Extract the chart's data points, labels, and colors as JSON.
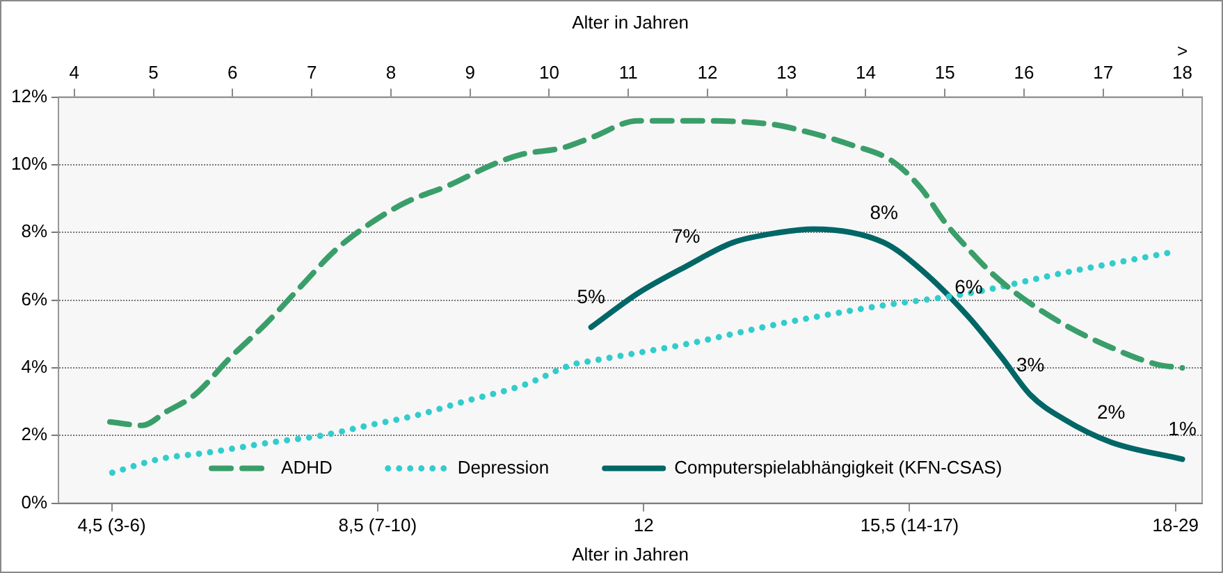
{
  "chart_data": {
    "type": "line",
    "xlabel": "Alter in Jahren",
    "x2label": "Alter in Jahren",
    "x2lim": [
      3.8,
      18.25
    ],
    "categories": [
      "4,5 (3-6)",
      "8,5 (7-10)",
      "12",
      "15,5 (14-17)",
      "18-29"
    ],
    "x2ticks": [
      4,
      5,
      6,
      7,
      8,
      9,
      10,
      11,
      12,
      13,
      14,
      15,
      16,
      17,
      {
        "value": 18,
        "label": ">\n18"
      }
    ],
    "ylim": [
      0,
      12
    ],
    "yticks": [
      {
        "value": 0,
        "label": "0%"
      },
      {
        "value": 2,
        "label": "2%"
      },
      {
        "value": 4,
        "label": "4%"
      },
      {
        "value": 6,
        "label": "6%"
      },
      {
        "value": 8,
        "label": "8%"
      },
      {
        "value": 10,
        "label": "10%"
      },
      {
        "value": 12,
        "label": "12%"
      }
    ],
    "grid": "y",
    "legend": "bottom",
    "marker": "none",
    "series": [
      {
        "name": "ADHD",
        "color": "#3a9e6a",
        "line_style": "dashed",
        "axis": "x2",
        "x": [
          4.45,
          4.86,
          5.16,
          5.52,
          5.97,
          6.42,
          6.86,
          7.31,
          7.76,
          8.2,
          8.74,
          9.28,
          9.64,
          10.17,
          10.53,
          11.12,
          11.73,
          12.8,
          13.21,
          13.8,
          14.34,
          14.7,
          15.0,
          15.3,
          15.59,
          15.9,
          16.49,
          17.1,
          17.68,
          18.0
        ],
        "values": [
          2.4,
          2.3,
          2.7,
          3.2,
          4.3,
          5.3,
          6.4,
          7.5,
          8.3,
          8.9,
          9.4,
          10.0,
          10.3,
          10.5,
          10.8,
          11.3,
          11.3,
          11.2,
          11.0,
          10.6,
          10.1,
          9.3,
          8.3,
          7.5,
          6.8,
          6.2,
          5.3,
          4.6,
          4.1,
          4.0
        ]
      },
      {
        "name": "Depression",
        "color": "#33cccc",
        "line_style": "dotted",
        "axis": "x2",
        "x": [
          4.48,
          5.07,
          5.7,
          6.5,
          7.13,
          7.72,
          8.33,
          8.92,
          9.69,
          10.3,
          10.53,
          11.73,
          12.91,
          14.1,
          15.3,
          16.49,
          17.83
        ],
        "values": [
          0.9,
          1.3,
          1.5,
          1.8,
          2.0,
          2.3,
          2.6,
          3.0,
          3.5,
          4.1,
          4.2,
          4.7,
          5.3,
          5.8,
          6.2,
          6.8,
          7.4
        ]
      },
      {
        "name": "Computerspielabhängigkeit (KFN-CSAS)",
        "color": "#006666",
        "line_style": "solid",
        "axis": "x2",
        "x": [
          10.53,
          11.12,
          11.73,
          12.32,
          12.91,
          13.34,
          14.23,
          14.7,
          15.3,
          15.72,
          16.08,
          16.49,
          17.1,
          18.0
        ],
        "values": [
          5.2,
          6.2,
          7.0,
          7.7,
          8.0,
          8.1,
          7.7,
          6.9,
          5.5,
          4.3,
          3.2,
          2.5,
          1.8,
          1.3
        ],
        "value_labels": [
          "5%",
          null,
          "7%",
          null,
          null,
          null,
          "8%",
          null,
          "6%",
          null,
          "3%",
          null,
          "2%",
          "1%"
        ]
      }
    ]
  }
}
